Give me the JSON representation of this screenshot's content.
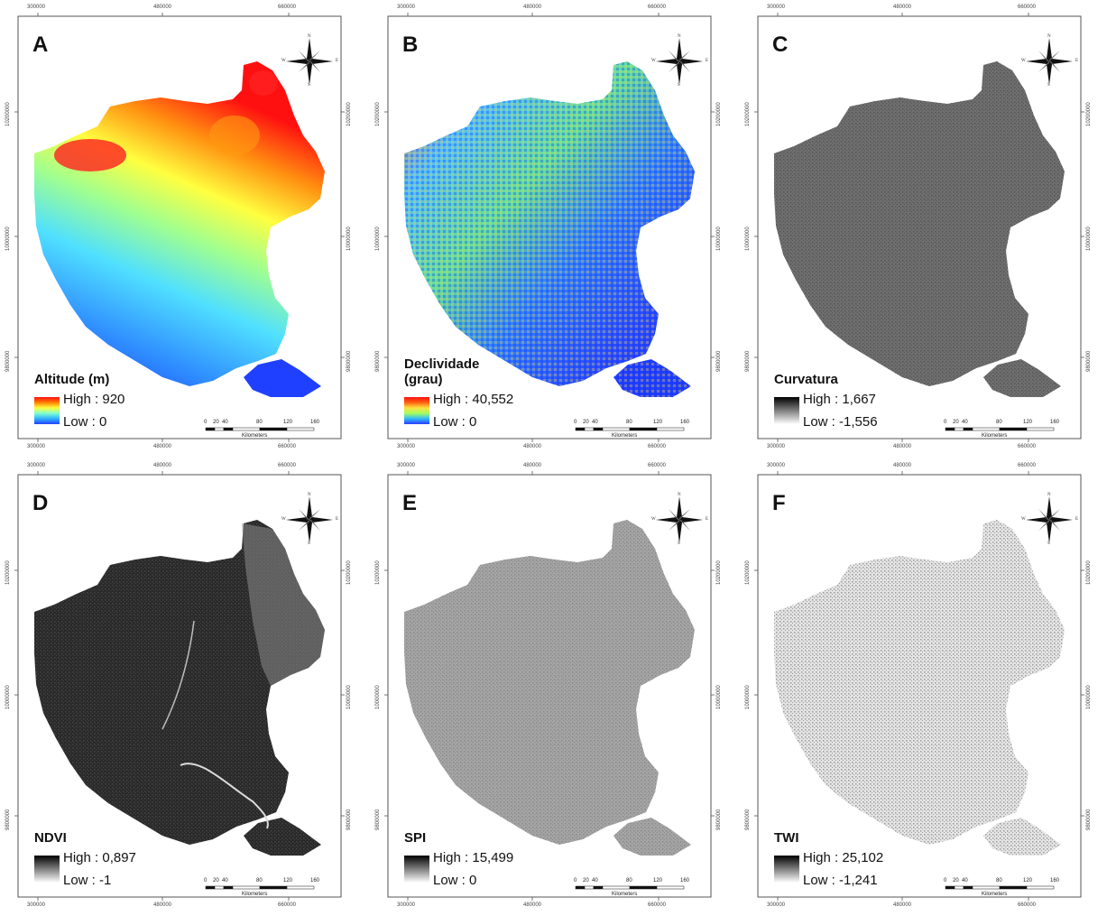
{
  "panels": [
    {
      "id": "A",
      "letter": "A",
      "kind": "altitude",
      "legend": {
        "title": "Altitude (m)",
        "high_label": "High : 920",
        "low_label": "Low : 0",
        "ramp": [
          "#2040ff",
          "#2fb0ff",
          "#7fffd0",
          "#ffff40",
          "#ff8000",
          "#ff1010"
        ]
      }
    },
    {
      "id": "B",
      "letter": "B",
      "kind": "slope",
      "legend": {
        "title": "Declividade (grau)",
        "high_label": "High : 40,552",
        "low_label": "Low : 0",
        "ramp": [
          "#2a3cff",
          "#30b8ff",
          "#a0ff60",
          "#ffe040",
          "#ff6010",
          "#ff1010"
        ]
      }
    },
    {
      "id": "C",
      "letter": "C",
      "kind": "curvature",
      "legend": {
        "title": "Curvatura",
        "high_label": "High : 1,667",
        "low_label": "Low : -1,556",
        "ramp": [
          "#ffffff",
          "#000000"
        ]
      }
    },
    {
      "id": "D",
      "letter": "D",
      "kind": "ndvi",
      "legend": {
        "title": "NDVI",
        "high_label": "High : 0,897",
        "low_label": "Low : -1",
        "ramp": [
          "#ffffff",
          "#000000"
        ]
      }
    },
    {
      "id": "E",
      "letter": "E",
      "kind": "spi",
      "legend": {
        "title": "SPI",
        "high_label": "High : 15,499",
        "low_label": "Low : 0",
        "ramp": [
          "#ffffff",
          "#000000"
        ]
      }
    },
    {
      "id": "F",
      "letter": "F",
      "kind": "twi",
      "legend": {
        "title": "TWI",
        "high_label": "High : 25,102",
        "low_label": "Low : -1,241",
        "ramp": [
          "#ffffff",
          "#000000"
        ]
      }
    }
  ],
  "axes": {
    "x_ticks": [
      "300000",
      "480000",
      "660000"
    ],
    "y_ticks": [
      "10200000",
      "10000000",
      "9800000"
    ]
  },
  "scale_bar": {
    "ticks": [
      "0",
      "20",
      "40",
      "80",
      "120",
      "160"
    ],
    "unit": "Kilometers"
  },
  "compass": {
    "n": "N",
    "s": "S",
    "e": "E",
    "w": "W"
  }
}
